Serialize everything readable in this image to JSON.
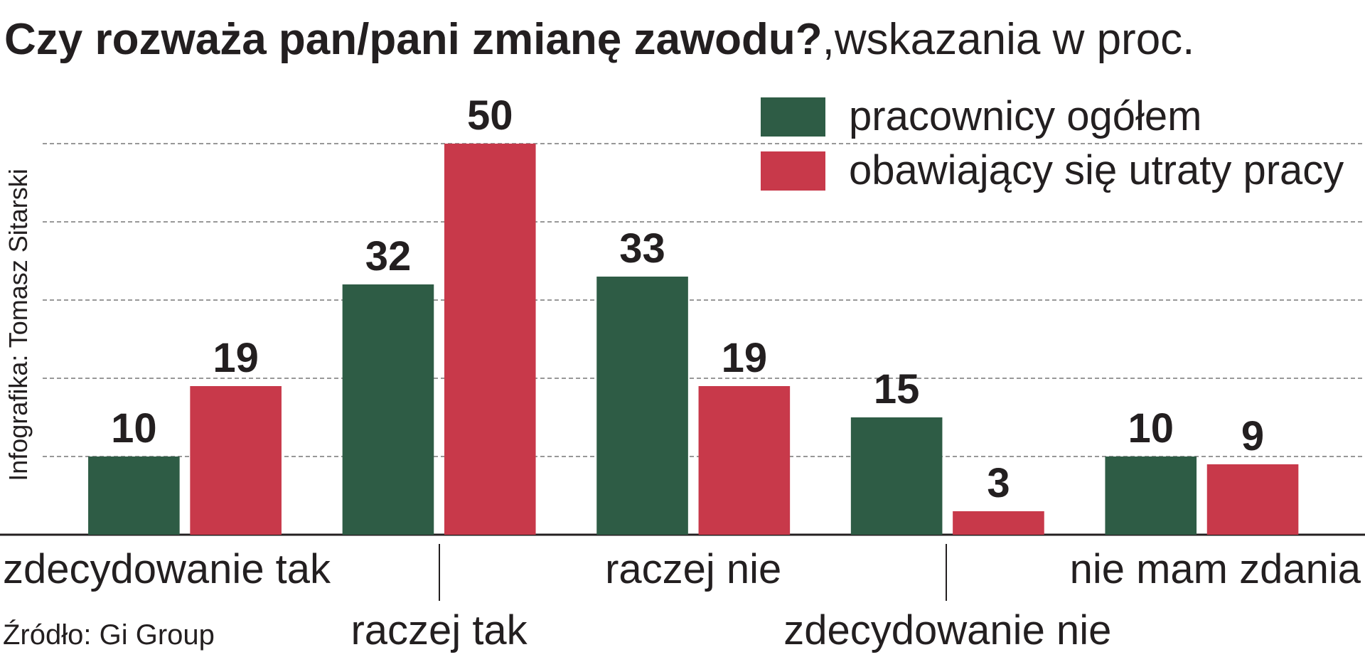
{
  "chart_data": {
    "type": "bar",
    "title": "Czy rozważa pan/pani zmianę zawodu?",
    "subtitle": ",wskazania w proc.",
    "credit": "Infografika: Tomasz Sitarski",
    "source": "Źródło: Gi Group",
    "categories": [
      "zdecydowanie tak",
      "raczej tak",
      "raczej nie",
      "zdecydowanie nie",
      "nie mam zdania"
    ],
    "series": [
      {
        "name": "pracownicy ogółem",
        "color": "#2e5c45",
        "values": [
          10,
          32,
          33,
          15,
          10
        ]
      },
      {
        "name": "obawiający się utraty pracy",
        "color": "#c8394a",
        "values": [
          19,
          50,
          19,
          3,
          9
        ]
      }
    ],
    "ylim": [
      0,
      50
    ],
    "yticks": [
      10,
      20,
      30,
      40,
      50
    ],
    "grid": true,
    "legend": "top-right"
  }
}
